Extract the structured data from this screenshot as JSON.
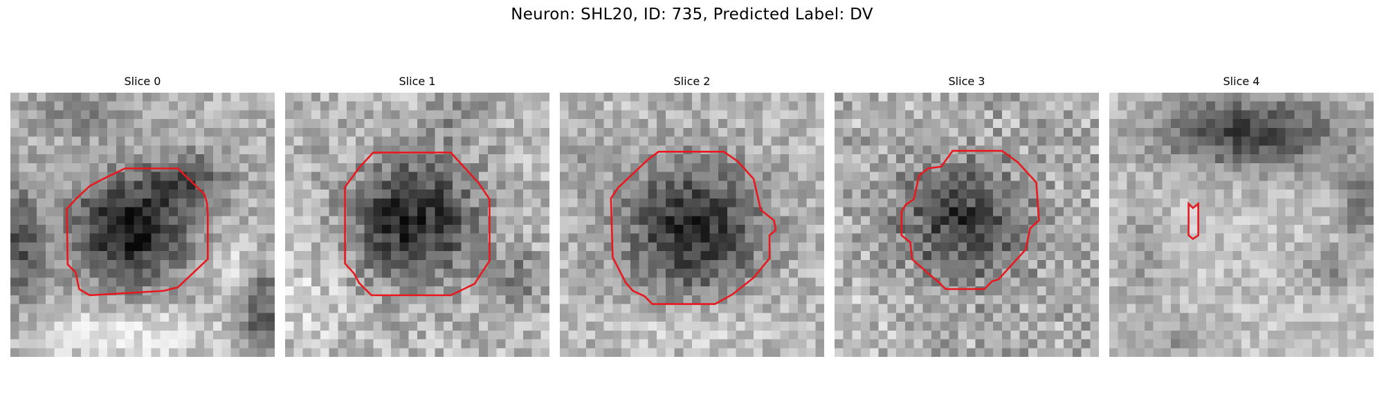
{
  "figure": {
    "title": "Neuron: SHL20, ID: 735, Predicted Label: DV"
  },
  "colors": {
    "contour": "#e8191e",
    "background": "#ffffff"
  },
  "panels": [
    {
      "title": "Slice 0"
    },
    {
      "title": "Slice 1"
    },
    {
      "title": "Slice 2"
    },
    {
      "title": "Slice 3"
    },
    {
      "title": "Slice 4"
    }
  ]
}
